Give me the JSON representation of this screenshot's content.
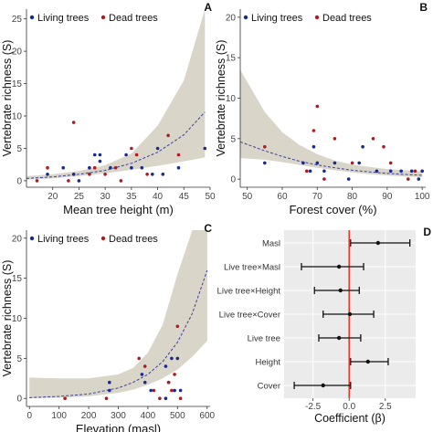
{
  "colors": {
    "living": "#1a2a8c",
    "dead": "#b01b22",
    "band": "#d9d5c8",
    "fit": "#3b3fa0",
    "panel_bg": "#ebebeb",
    "zero_line": "#e8241c"
  },
  "chart_data": [
    {
      "panel": "A",
      "type": "scatter",
      "xlabel": "Mean tree height (m)",
      "ylabel": "Vertebrate richness (S)",
      "xlim": [
        15,
        50
      ],
      "ylim": [
        -1,
        26.5
      ],
      "xticks": [
        20,
        25,
        30,
        35,
        40,
        45,
        50
      ],
      "yticks": [
        0,
        5,
        10,
        15,
        20,
        25
      ],
      "legend": {
        "position": "top-left",
        "items": [
          "Living trees",
          "Dead trees"
        ]
      },
      "series": [
        {
          "name": "Living trees",
          "points": [
            [
              19,
              1
            ],
            [
              22,
              2
            ],
            [
              24,
              1
            ],
            [
              25,
              0
            ],
            [
              27,
              2
            ],
            [
              28,
              4
            ],
            [
              29,
              3
            ],
            [
              29,
              4
            ],
            [
              31,
              2
            ],
            [
              34,
              4
            ],
            [
              35,
              2
            ],
            [
              37,
              2
            ],
            [
              39,
              1
            ],
            [
              40,
              5
            ],
            [
              41,
              1
            ],
            [
              44,
              2
            ],
            [
              49,
              5
            ]
          ]
        },
        {
          "name": "Dead trees",
          "points": [
            [
              17,
              0
            ],
            [
              19,
              2
            ],
            [
              23,
              0
            ],
            [
              24,
              9
            ],
            [
              27,
              1
            ],
            [
              28,
              2
            ],
            [
              30,
              1
            ],
            [
              32,
              2
            ],
            [
              33,
              0
            ],
            [
              35,
              5
            ],
            [
              36,
              4
            ],
            [
              38,
              1
            ],
            [
              42,
              7
            ],
            [
              44,
              4
            ]
          ]
        }
      ],
      "fit": {
        "x": [
          15,
          20,
          25,
          30,
          35,
          40,
          45,
          49
        ],
        "y": [
          0.35,
          0.6,
          1.0,
          1.6,
          2.7,
          4.4,
          7.1,
          10.6
        ],
        "lower": [
          0.18,
          0.38,
          0.7,
          1.15,
          1.7,
          2.3,
          3.0,
          3.6
        ],
        "upper": [
          0.7,
          1.0,
          1.5,
          2.4,
          4.2,
          8.5,
          15.5,
          26.5
        ]
      }
    },
    {
      "panel": "B",
      "type": "scatter",
      "xlabel": "Forest cover (%)",
      "ylabel": "Vertebrate richness (S)",
      "xlim": [
        48,
        101
      ],
      "ylim": [
        -1,
        21
      ],
      "xticks": [
        50,
        60,
        70,
        80,
        90,
        100
      ],
      "yticks": [
        0,
        5,
        10,
        15,
        20
      ],
      "legend": {
        "position": "top-left",
        "items": [
          "Living trees",
          "Dead trees"
        ]
      },
      "series": [
        {
          "name": "Living trees",
          "points": [
            [
              55,
              2
            ],
            [
              66,
              2
            ],
            [
              68,
              1
            ],
            [
              69,
              4
            ],
            [
              70,
              2
            ],
            [
              72,
              1
            ],
            [
              75,
              2
            ],
            [
              79,
              0
            ],
            [
              82,
              2
            ],
            [
              83,
              4
            ],
            [
              87,
              1
            ],
            [
              91,
              1
            ],
            [
              94,
              1
            ],
            [
              97,
              1
            ],
            [
              99,
              0
            ],
            [
              100,
              1
            ]
          ]
        },
        {
          "name": "Dead trees",
          "points": [
            [
              55,
              4
            ],
            [
              67,
              1
            ],
            [
              69,
              6
            ],
            [
              70,
              9
            ],
            [
              72,
              0
            ],
            [
              75,
              5
            ],
            [
              80,
              2
            ],
            [
              86,
              5
            ],
            [
              89,
              4
            ],
            [
              91,
              2
            ],
            [
              96,
              0
            ],
            [
              98,
              1
            ]
          ]
        }
      ],
      "fit": {
        "x": [
          48,
          55,
          60,
          65,
          70,
          75,
          80,
          85,
          90,
          95,
          100
        ],
        "y": [
          4.6,
          3.5,
          2.8,
          2.2,
          1.75,
          1.4,
          1.1,
          0.9,
          0.72,
          0.58,
          0.48
        ],
        "lower": [
          2.6,
          2.4,
          2.1,
          1.75,
          1.4,
          1.1,
          0.82,
          0.6,
          0.45,
          0.32,
          0.24
        ],
        "upper": [
          13.5,
          8.3,
          5.8,
          4.2,
          3.1,
          2.3,
          1.8,
          1.5,
          1.25,
          1.1,
          1.0
        ]
      }
    },
    {
      "panel": "C",
      "type": "scatter",
      "xlabel": "Elevation (masl)",
      "ylabel": "Vertebrate richness (S)",
      "xlim": [
        -10,
        610
      ],
      "ylim": [
        -1,
        21
      ],
      "xticks": [
        0,
        100,
        200,
        300,
        400,
        500,
        600
      ],
      "yticks": [
        0,
        5,
        10,
        15,
        20
      ],
      "legend": {
        "position": "top-left",
        "items": [
          "Living trees",
          "Dead trees"
        ]
      },
      "series": [
        {
          "name": "Living trees",
          "points": [
            [
              270,
              2
            ],
            [
              270,
              1
            ],
            [
              380,
              3
            ],
            [
              390,
              2
            ],
            [
              410,
              1
            ],
            [
              460,
              0
            ],
            [
              460,
              4
            ],
            [
              470,
              2
            ],
            [
              480,
              5
            ],
            [
              490,
              1
            ],
            [
              500,
              5
            ],
            [
              510,
              1
            ]
          ]
        },
        {
          "name": "Dead trees",
          "points": [
            [
              120,
              0
            ],
            [
              260,
              0
            ],
            [
              370,
              5
            ],
            [
              390,
              4
            ],
            [
              420,
              1
            ],
            [
              440,
              0
            ],
            [
              470,
              2
            ],
            [
              480,
              1
            ],
            [
              490,
              3
            ],
            [
              500,
              9
            ],
            [
              510,
              0
            ]
          ]
        }
      ],
      "fit": {
        "x": [
          0,
          100,
          200,
          300,
          350,
          400,
          450,
          500,
          550,
          600
        ],
        "y": [
          0.1,
          0.25,
          0.55,
          1.3,
          2.0,
          3.0,
          4.6,
          7.0,
          10.6,
          16.0
        ],
        "lower": [
          0.02,
          0.08,
          0.25,
          0.7,
          1.1,
          1.7,
          2.5,
          3.6,
          5.2,
          7.2
        ],
        "upper": [
          2.6,
          2.5,
          2.5,
          3.0,
          3.8,
          5.7,
          9.2,
          15.5,
          21.0,
          21.0
        ]
      }
    },
    {
      "panel": "D",
      "type": "scatter",
      "xlabel": "Coefficient (β)",
      "xlim": [
        -4.5,
        4.6
      ],
      "xticks": [
        -2.5,
        0.0,
        2.5
      ],
      "xtick_labels": [
        "-2.5",
        "0.0",
        "2.5"
      ],
      "categories": [
        "Masl",
        "Live tree×Masl",
        "Live tree×Height",
        "Live tree×Cover",
        "Live tree",
        "Height",
        "Cover"
      ],
      "estimates": [
        2.0,
        -0.7,
        -0.6,
        0.05,
        -0.7,
        1.3,
        -1.8
      ],
      "ci_low": [
        0.1,
        -3.3,
        -2.4,
        -1.8,
        -2.1,
        0.1,
        -3.8
      ],
      "ci_high": [
        4.2,
        1.0,
        0.7,
        1.7,
        0.8,
        2.7,
        0.1
      ]
    }
  ]
}
